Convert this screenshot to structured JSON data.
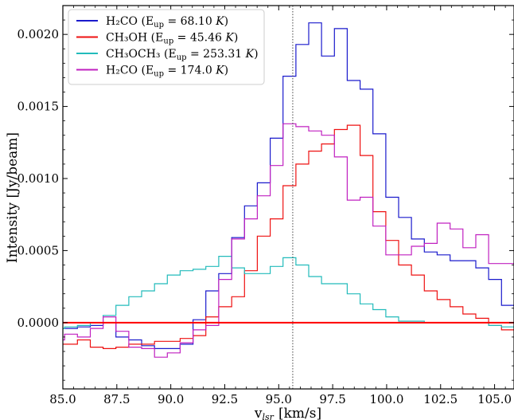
{
  "chart_data": {
    "type": "line",
    "step": true,
    "xlabel": "v",
    "xlabel_sub": "lsr",
    "xlabel_unit": "[km/s]",
    "ylabel": "Intensity [Jy/beam]",
    "xlim": [
      85.0,
      105.9
    ],
    "ylim": [
      -0.00046,
      0.0022
    ],
    "x_ticks": [
      85.0,
      87.5,
      90.0,
      92.5,
      95.0,
      97.5,
      100.0,
      102.5,
      105.0
    ],
    "x_tick_labels": [
      "85.0",
      "87.5",
      "90.0",
      "92.5",
      "95.0",
      "97.5",
      "100.0",
      "102.5",
      "105.0"
    ],
    "y_ticks": [
      0.0,
      0.0005,
      0.001,
      0.0015,
      0.002
    ],
    "y_tick_labels": [
      "0.0000",
      "0.0005",
      "0.0010",
      "0.0015",
      "0.0020"
    ],
    "hline": {
      "y": 0.0,
      "color": "#ff0000"
    },
    "vline": {
      "x": 95.65,
      "color": "#444444",
      "style": "dotted"
    },
    "legend_position": "top-left",
    "x": [
      84.78,
      85.38,
      85.97,
      86.57,
      87.16,
      87.76,
      88.35,
      88.95,
      89.54,
      90.14,
      90.73,
      91.33,
      91.92,
      92.52,
      93.12,
      93.71,
      94.31,
      94.9,
      95.5,
      96.09,
      96.69,
      97.28,
      97.88,
      98.47,
      99.07,
      99.66,
      100.26,
      100.85,
      101.45,
      102.04,
      102.64,
      103.24,
      103.83,
      104.43,
      105.02,
      105.62
    ],
    "series": [
      {
        "name": "H₂CO",
        "eup_label": "E",
        "eup_sub": "up",
        "eup_value": "68.10",
        "unit": "K",
        "color": "#1a1acc",
        "values": [
          -4e-05,
          -4e-05,
          -3e-05,
          -2e-05,
          0.0,
          -0.0001,
          -0.00012,
          -0.00016,
          -0.00018,
          -0.00018,
          -0.00015,
          2e-05,
          0.00022,
          0.00034,
          0.00059,
          0.00081,
          0.00097,
          0.00128,
          0.00171,
          0.00193,
          0.00208,
          0.00185,
          0.00204,
          0.00168,
          0.00162,
          0.00131,
          0.00087,
          0.00073,
          0.00058,
          0.00049,
          0.00047,
          0.00043,
          0.00043,
          0.00038,
          0.0003,
          0.00012
        ]
      },
      {
        "name": "CH₃OH",
        "eup_label": "E",
        "eup_sub": "up",
        "eup_value": "45.46",
        "unit": "K",
        "color": "#ee1111",
        "values": [
          -0.00015,
          -0.00015,
          -0.00012,
          -0.00017,
          -0.00018,
          -0.00017,
          -0.00015,
          -0.00015,
          -0.00013,
          -0.00013,
          -0.00011,
          -9e-05,
          4e-05,
          0.00011,
          0.00018,
          0.00036,
          0.0006,
          0.00072,
          0.00095,
          0.0011,
          0.00119,
          0.00124,
          0.00134,
          0.00137,
          0.00116,
          0.00077,
          0.00057,
          0.0004,
          0.00033,
          0.00022,
          0.00016,
          0.00011,
          6e-05,
          3e-05,
          -2e-05,
          -5e-05
        ]
      },
      {
        "name": "CH₃OCH₃",
        "eup_label": "E",
        "eup_sub": "up",
        "eup_value": "253.31",
        "unit": "K",
        "color": "#22bbbb",
        "values": [
          -4e-05,
          -3e-05,
          -2e-05,
          0.0,
          5e-05,
          0.00012,
          0.00018,
          0.00022,
          0.00027,
          0.00033,
          0.00036,
          0.00037,
          0.00039,
          0.00046,
          0.00038,
          0.00034,
          0.00034,
          0.00039,
          0.00045,
          0.0004,
          0.00032,
          0.00027,
          0.00027,
          0.0002,
          0.00013,
          9e-05,
          4e-05,
          1e-05,
          1e-05,
          0.0,
          0.0,
          0.0,
          0.0,
          0.0,
          -2e-05,
          -3e-05
        ]
      },
      {
        "name": "H₂CO",
        "eup_label": "E",
        "eup_sub": "up",
        "eup_value": "174.0",
        "unit": "K",
        "color": "#c020c0",
        "values": [
          -0.00012,
          -8e-05,
          -0.0001,
          -4e-05,
          4e-05,
          -6e-05,
          -0.00017,
          -0.00018,
          -0.00024,
          -0.00021,
          -0.00014,
          -5e-05,
          -2e-05,
          0.0003,
          0.00058,
          0.00072,
          0.00088,
          0.00109,
          0.00138,
          0.00136,
          0.00133,
          0.0013,
          0.00115,
          0.00085,
          0.00087,
          0.00067,
          0.00047,
          0.00047,
          0.00053,
          0.00055,
          0.00069,
          0.00065,
          0.00052,
          0.00061,
          0.00041,
          0.00041
        ]
      }
    ]
  }
}
